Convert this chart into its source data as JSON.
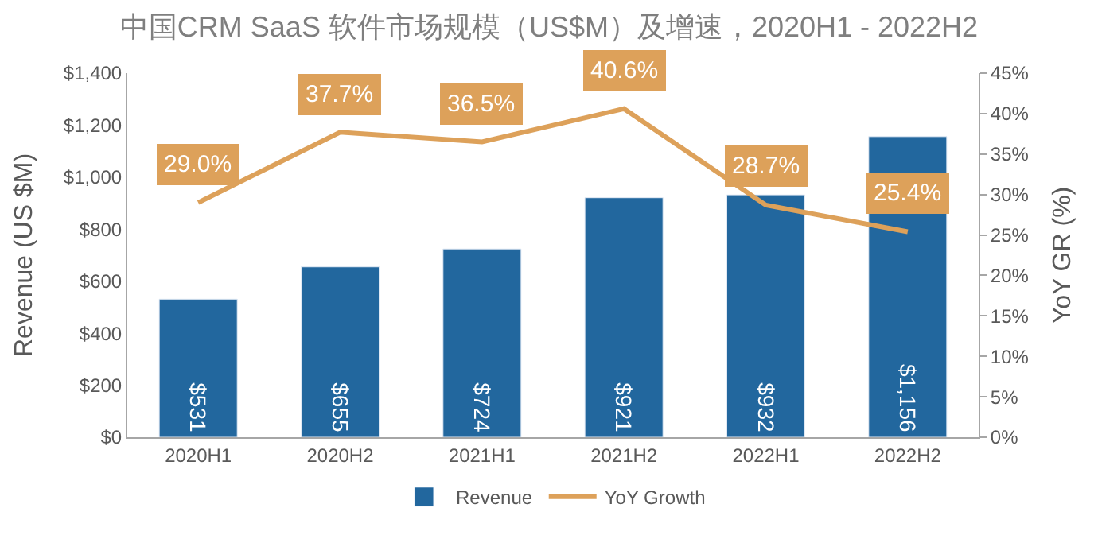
{
  "chart_data": {
    "type": "bar",
    "title": "中国CRM SaaS 软件市场规模（US$M）及增速，2020H1 - 2022H2",
    "categories": [
      "2020H1",
      "2020H2",
      "2021H1",
      "2021H2",
      "2022H1",
      "2022H2"
    ],
    "series": [
      {
        "name": "Revenue",
        "color": "#22679e",
        "values": [
          531,
          655,
          724,
          921,
          932,
          1156
        ],
        "value_labels": [
          "$531",
          "$655",
          "$724",
          "$921",
          "$932",
          "$1,156"
        ]
      },
      {
        "name": "YoY Growth",
        "type": "line",
        "axis": "y2",
        "color": "#dda15a",
        "values": [
          29.0,
          37.7,
          36.5,
          40.6,
          28.7,
          25.4
        ],
        "value_labels": [
          "29.0%",
          "37.7%",
          "36.5%",
          "40.6%",
          "28.7%",
          "25.4%"
        ]
      }
    ],
    "ylabel": "Revenue (US $M)",
    "y2label": "YoY GR (%)",
    "ylim": [
      0,
      1400
    ],
    "yticks": [
      {
        "value": 0,
        "label": "$0"
      },
      {
        "value": 200,
        "label": "$200"
      },
      {
        "value": 400,
        "label": "$400"
      },
      {
        "value": 600,
        "label": "$600"
      },
      {
        "value": 800,
        "label": "$800"
      },
      {
        "value": 1000,
        "label": "$1,000"
      },
      {
        "value": 1200,
        "label": "$1,200"
      },
      {
        "value": 1400,
        "label": "$1,400"
      }
    ],
    "y2lim": [
      0,
      45
    ],
    "y2ticks": [
      {
        "value": 0,
        "label": "0%"
      },
      {
        "value": 5,
        "label": "5%"
      },
      {
        "value": 10,
        "label": "10%"
      },
      {
        "value": 15,
        "label": "15%"
      },
      {
        "value": 20,
        "label": "20%"
      },
      {
        "value": 25,
        "label": "25%"
      },
      {
        "value": 30,
        "label": "30%"
      },
      {
        "value": 35,
        "label": "35%"
      },
      {
        "value": 40,
        "label": "40%"
      },
      {
        "value": 45,
        "label": "45%"
      }
    ],
    "grid": false,
    "legend": "bottom",
    "marker": "none",
    "line_style": "solid"
  }
}
